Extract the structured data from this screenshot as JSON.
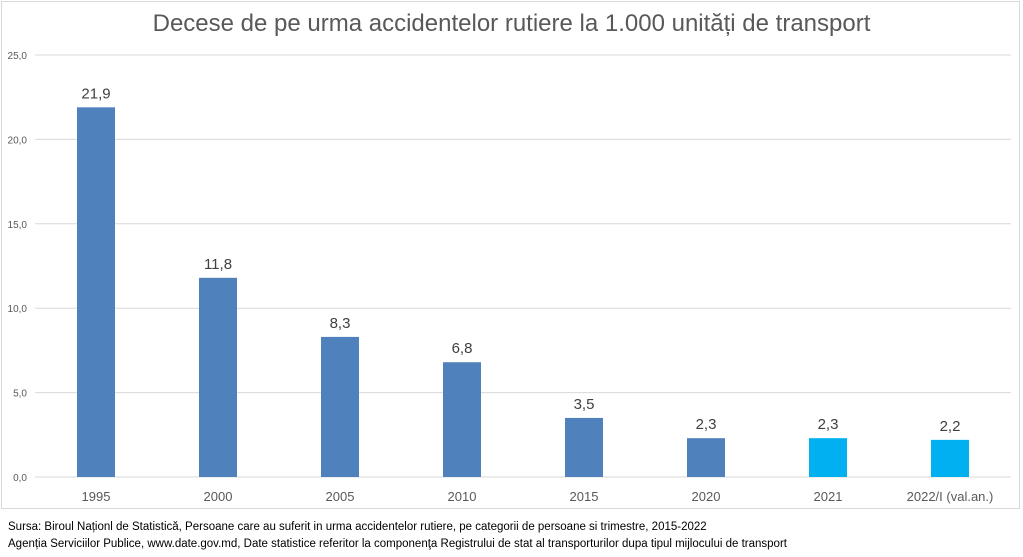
{
  "chart_data": {
    "type": "bar",
    "title": "Decese de pe urma accidentelor rutiere la 1.000 unități de transport",
    "categories": [
      "1995",
      "2000",
      "2005",
      "2010",
      "2015",
      "2020",
      "2021",
      "2022/I (val.an.)"
    ],
    "values": [
      21.9,
      11.8,
      8.3,
      6.8,
      3.5,
      2.3,
      2.3,
      2.2
    ],
    "value_labels": [
      "21,9",
      "11,8",
      "8,3",
      "6,8",
      "3,5",
      "2,3",
      "2,3",
      "2,2"
    ],
    "colors": [
      "#4f81bd",
      "#4f81bd",
      "#4f81bd",
      "#4f81bd",
      "#4f81bd",
      "#4f81bd",
      "#00b0f0",
      "#00b0f0"
    ],
    "yticks": [
      0,
      5,
      10,
      15,
      20,
      25
    ],
    "ytick_labels": [
      "0,0",
      "5,0",
      "10,0",
      "15,0",
      "20,0",
      "25,0"
    ],
    "ylim": [
      0,
      25
    ],
    "xlabel": "",
    "ylabel": "",
    "grid": true
  },
  "source": {
    "line1": "Sursa: Biroul Naționl de Statistică, Persoane care au suferit in urma accidentelor rutiere, pe categorii de persoane si trimestre, 2015-2022",
    "line2": "Agenția Serviciilor Publice, www.date.gov.md,  Date statistice referitor la componenţa Registrului de stat al transporturilor dupa tipul mijlocului de transport"
  }
}
